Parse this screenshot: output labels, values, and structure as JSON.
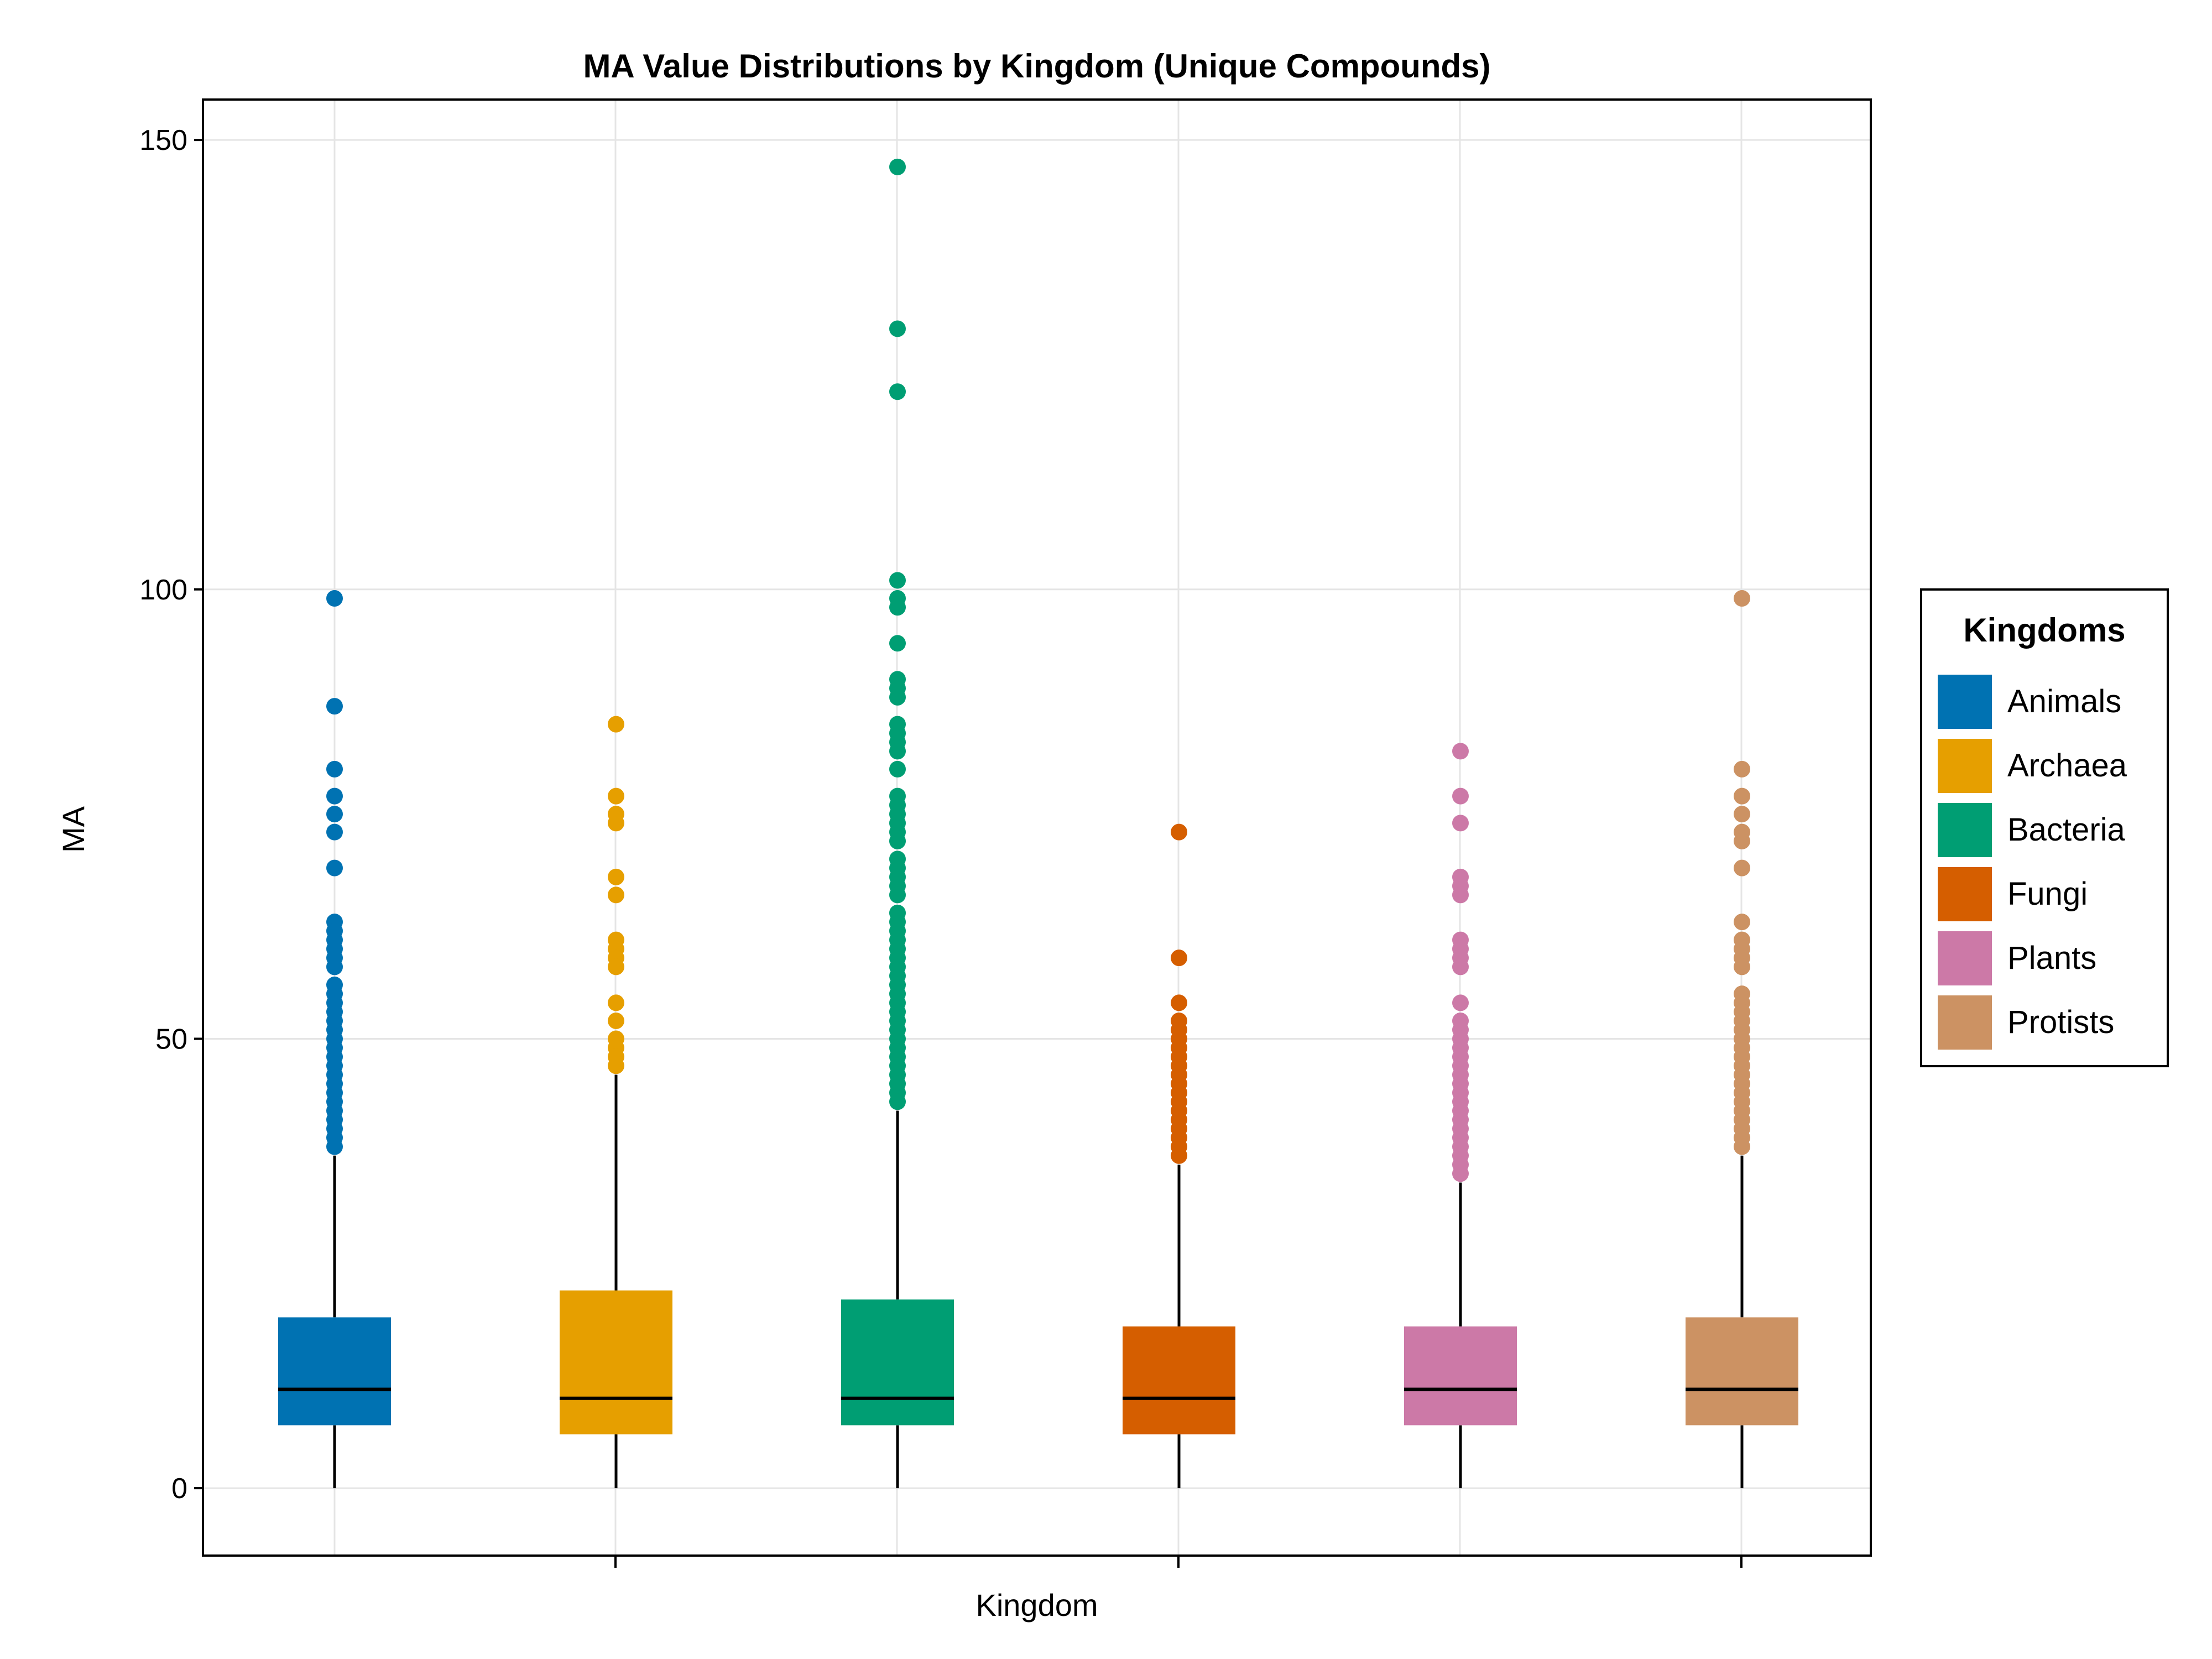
{
  "chart_data": {
    "type": "box",
    "title": "MA Value Distributions by Kingdom (Unique Compounds)",
    "xlabel": "Kingdom",
    "ylabel": "MA",
    "ylim": [
      -7.5,
      154.5
    ],
    "yticks": [
      0,
      50,
      100,
      150
    ],
    "grid": true,
    "legend": {
      "title": "Kingdoms",
      "placement": "right"
    },
    "series": [
      {
        "name": "Animals",
        "color": "#0072B2",
        "x": 1,
        "min": 0,
        "q1": 7,
        "median": 11,
        "q3": 19,
        "max": 37,
        "outliers": [
          99,
          87,
          80,
          77,
          75,
          73,
          69,
          63,
          62,
          61,
          60,
          59,
          58,
          56,
          55,
          54,
          53,
          52,
          51,
          50,
          49,
          48,
          47,
          46,
          45,
          44,
          43,
          42,
          41,
          40,
          39,
          38
        ]
      },
      {
        "name": "Archaea",
        "color": "#E69F00",
        "x": 2,
        "min": 0,
        "q1": 6,
        "median": 10,
        "q3": 22,
        "max": 46,
        "outliers": [
          85,
          77,
          75,
          74,
          68,
          66,
          61,
          60,
          59,
          58,
          54,
          52,
          50,
          49,
          48,
          47
        ]
      },
      {
        "name": "Bacteria",
        "color": "#009E73",
        "x": 3,
        "min": 0,
        "q1": 7,
        "median": 10,
        "q3": 21,
        "max": 42,
        "outliers": [
          147,
          129,
          122,
          101,
          99,
          98,
          94,
          90,
          89,
          88,
          85,
          84,
          83,
          82,
          80,
          77,
          76,
          75,
          74,
          73,
          72,
          70,
          69,
          68,
          67,
          66,
          64,
          63,
          62,
          61,
          60,
          59,
          58,
          57,
          56,
          55,
          54,
          53,
          52,
          51,
          50,
          49,
          48,
          47,
          46,
          45,
          44,
          43
        ]
      },
      {
        "name": "Fungi",
        "color": "#D55E00",
        "x": 4,
        "min": 0,
        "q1": 6,
        "median": 10,
        "q3": 18,
        "max": 36,
        "outliers": [
          73,
          59,
          54,
          52,
          51,
          50,
          49,
          48,
          47,
          46,
          45,
          44,
          43,
          42,
          41,
          40,
          39,
          38,
          37
        ]
      },
      {
        "name": "Plants",
        "color": "#CC79A7",
        "x": 5,
        "min": 0,
        "q1": 7,
        "median": 11,
        "q3": 18,
        "max": 34,
        "outliers": [
          82,
          77,
          74,
          68,
          67,
          66,
          61,
          60,
          59,
          58,
          54,
          52,
          51,
          50,
          49,
          48,
          47,
          46,
          45,
          44,
          43,
          42,
          41,
          40,
          39,
          38,
          37,
          36,
          35
        ]
      },
      {
        "name": "Protists",
        "color": "#CC9263",
        "x": 6,
        "min": 0,
        "q1": 7,
        "median": 11,
        "q3": 19,
        "max": 37,
        "outliers": [
          99,
          80,
          77,
          75,
          73,
          72,
          69,
          63,
          61,
          60,
          59,
          58,
          55,
          54,
          53,
          52,
          51,
          50,
          49,
          48,
          47,
          46,
          45,
          44,
          43,
          42,
          41,
          40,
          39,
          38
        ]
      }
    ]
  }
}
